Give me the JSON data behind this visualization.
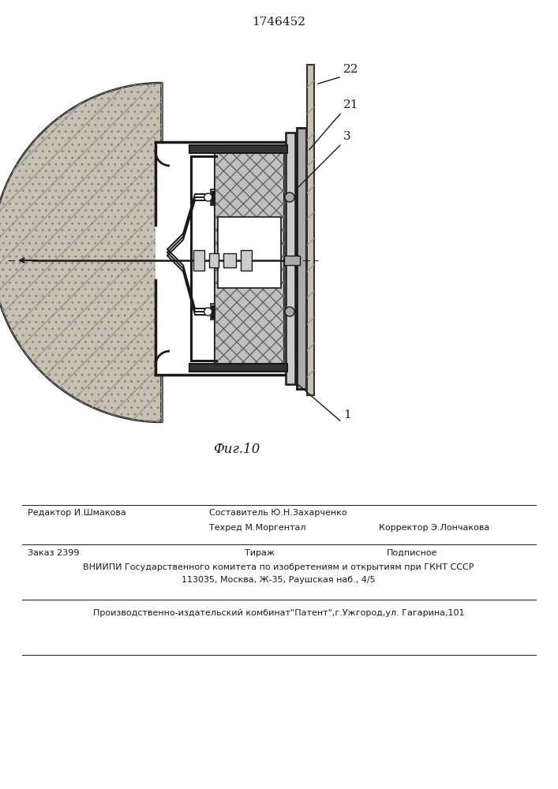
{
  "title": "1746452",
  "fig_label": "Фиг.10",
  "label_1": "1",
  "label_3": "3",
  "label_21": "21",
  "label_22": "22",
  "editor_line": "Редактор И.Шмакова",
  "composer_line": "Составитель Ю.Н.Захарченко",
  "techred_line": "Техред М.Моргентал",
  "corrector_line": "Корректор Э.Лончакова",
  "order_line": "Заказ 2399",
  "tirazh_line": "Тираж",
  "podpisnoe_line": "Подписное",
  "vniiipi_line": "ВНИИПИ Государственного комитета по изобретениям и открытиям при ГКНТ СССР",
  "address_line": "113035, Москва, Ж-35, Раушская наб., 4/5",
  "factory_line": "Производственно-издательский комбинат\"Патент\",г.Ужгород,ул. Гагарина,101",
  "bg_color": "#ffffff",
  "line_color": "#1a1a1a",
  "concrete_color": "#c8c0b0",
  "hatch_color": "#777777"
}
